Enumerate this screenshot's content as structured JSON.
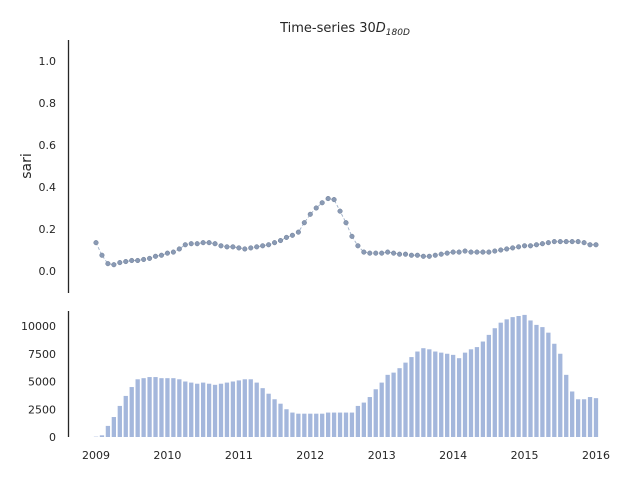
{
  "chart_data": [
    {
      "type": "line",
      "title_main": "Time-series 30",
      "title_math": "D",
      "title_sub": "180D",
      "ylabel": "sari",
      "xlabel": "",
      "xlim": [
        2008.8,
        2016.0
      ],
      "ylim": [
        -0.1,
        1.1
      ],
      "yticks": [
        0.0,
        0.2,
        0.4,
        0.6,
        0.8,
        1.0
      ],
      "ytick_labels": [
        "0.0",
        "0.2",
        "0.4",
        "0.6",
        "0.8",
        "1.0"
      ],
      "grid": false,
      "marker_color": "#8a9ab4",
      "line_color": "#9fb0c8",
      "series": [
        {
          "x_start": 2009.0,
          "x_step": 0.08333,
          "values": [
            0.135,
            0.075,
            0.035,
            0.03,
            0.04,
            0.045,
            0.05,
            0.05,
            0.055,
            0.06,
            0.07,
            0.075,
            0.085,
            0.09,
            0.105,
            0.125,
            0.13,
            0.13,
            0.135,
            0.135,
            0.13,
            0.12,
            0.115,
            0.115,
            0.11,
            0.105,
            0.11,
            0.115,
            0.12,
            0.125,
            0.135,
            0.145,
            0.16,
            0.17,
            0.185,
            0.23,
            0.27,
            0.3,
            0.325,
            0.345,
            0.34,
            0.285,
            0.23,
            0.165,
            0.12,
            0.09,
            0.085,
            0.085,
            0.085,
            0.09,
            0.085,
            0.08,
            0.08,
            0.075,
            0.075,
            0.07,
            0.07,
            0.075,
            0.08,
            0.085,
            0.09,
            0.09,
            0.095,
            0.09,
            0.09,
            0.09,
            0.09,
            0.095,
            0.1,
            0.105,
            0.11,
            0.115,
            0.12,
            0.12,
            0.125,
            0.13,
            0.135,
            0.14,
            0.14,
            0.14,
            0.14,
            0.14,
            0.135,
            0.125,
            0.125
          ]
        }
      ]
    },
    {
      "type": "bar",
      "xlim": [
        2008.8,
        2016.0
      ],
      "ylim": [
        0,
        11500
      ],
      "yticks": [
        0,
        2500,
        5000,
        7500,
        10000
      ],
      "ytick_labels": [
        "0",
        "2500",
        "5000",
        "7500",
        "10000"
      ],
      "xticks": [
        2009,
        2010,
        2011,
        2012,
        2013,
        2014,
        2015,
        2016
      ],
      "xtick_labels": [
        "2009",
        "2010",
        "2011",
        "2012",
        "2013",
        "2014",
        "2015",
        "2016"
      ],
      "grid": false,
      "bar_color": "#a4b7dc",
      "series": [
        {
          "x_start": 2009.0,
          "x_step": 0.08333,
          "values": [
            30,
            150,
            1000,
            1800,
            2800,
            3700,
            4500,
            5200,
            5300,
            5400,
            5400,
            5300,
            5300,
            5300,
            5200,
            5000,
            4900,
            4800,
            4900,
            4800,
            4700,
            4800,
            4900,
            5000,
            5100,
            5200,
            5200,
            4900,
            4400,
            3900,
            3400,
            3000,
            2500,
            2200,
            2100,
            2100,
            2100,
            2100,
            2100,
            2200,
            2200,
            2200,
            2200,
            2200,
            2800,
            3100,
            3600,
            4300,
            4900,
            5600,
            5800,
            6200,
            6700,
            7200,
            7700,
            8000,
            7900,
            7700,
            7600,
            7500,
            7400,
            7100,
            7600,
            7900,
            8100,
            8600,
            9200,
            9800,
            10300,
            10600,
            10800,
            10900,
            11000,
            10500,
            10100,
            9900,
            9400,
            8400,
            7500,
            5600,
            4100,
            3400,
            3400,
            3600,
            3500
          ]
        }
      ]
    }
  ]
}
